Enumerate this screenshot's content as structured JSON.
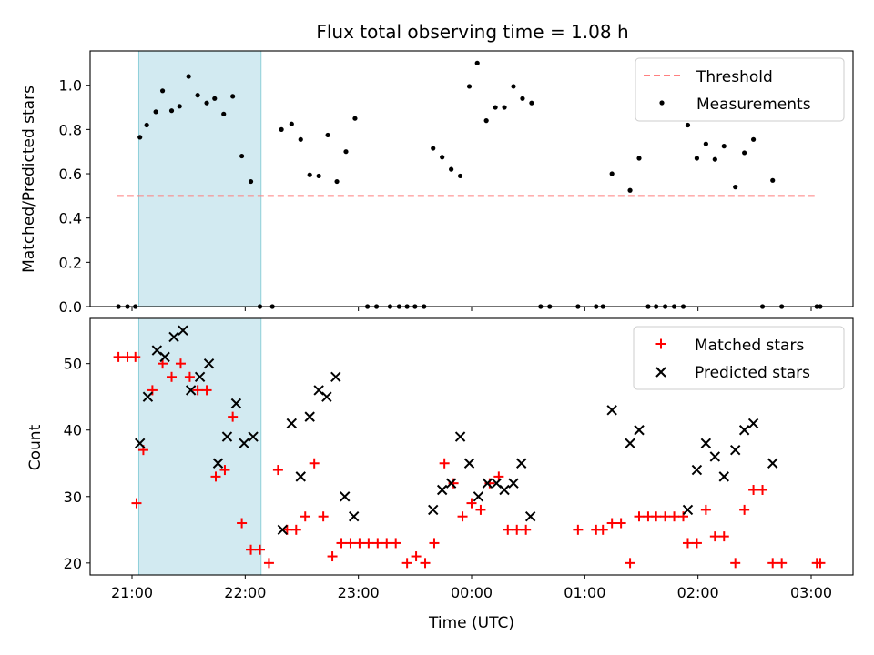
{
  "title": "Flux total observing time = 1.08 h",
  "chart_data": [
    {
      "type": "scatter",
      "ylabel": "Matched/Predicted stars",
      "xlabel": "",
      "x_unit": "hours since 21:00 UTC",
      "xlim": [
        -0.37,
        6.37
      ],
      "ylim": [
        0,
        1.155
      ],
      "yticks": [
        0.0,
        0.2,
        0.4,
        0.6,
        0.8,
        1.0
      ],
      "shaded_span": {
        "x": [
          0.06,
          1.14
        ],
        "color": "#add8e6"
      },
      "threshold": {
        "name": "Threshold",
        "y": 0.5,
        "x": [
          -0.13,
          6.03
        ],
        "color": "#ff7f7f",
        "style": "dashed"
      },
      "series": [
        {
          "name": "Measurements",
          "color": "#000000",
          "marker": "dot",
          "points": [
            [
              -0.12,
              0.0
            ],
            [
              -0.04,
              0.0
            ],
            [
              0.03,
              0.0
            ],
            [
              0.07,
              0.765
            ],
            [
              0.13,
              0.82
            ],
            [
              0.21,
              0.88
            ],
            [
              0.27,
              0.975
            ],
            [
              0.35,
              0.885
            ],
            [
              0.42,
              0.905
            ],
            [
              0.5,
              1.04
            ],
            [
              0.58,
              0.955
            ],
            [
              0.66,
              0.92
            ],
            [
              0.73,
              0.94
            ],
            [
              0.81,
              0.87
            ],
            [
              0.89,
              0.95
            ],
            [
              0.97,
              0.68
            ],
            [
              1.05,
              0.565
            ],
            [
              1.13,
              0.0
            ],
            [
              1.24,
              0.0
            ],
            [
              1.32,
              0.8
            ],
            [
              1.41,
              0.825
            ],
            [
              1.49,
              0.755
            ],
            [
              1.57,
              0.595
            ],
            [
              1.65,
              0.59
            ],
            [
              1.73,
              0.775
            ],
            [
              1.81,
              0.565
            ],
            [
              1.89,
              0.7
            ],
            [
              1.97,
              0.85
            ],
            [
              2.08,
              0.0
            ],
            [
              2.16,
              0.0
            ],
            [
              2.28,
              0.0
            ],
            [
              2.36,
              0.0
            ],
            [
              2.43,
              0.0
            ],
            [
              2.5,
              0.0
            ],
            [
              2.58,
              0.0
            ],
            [
              2.66,
              0.715
            ],
            [
              2.74,
              0.675
            ],
            [
              2.82,
              0.62
            ],
            [
              2.9,
              0.59
            ],
            [
              2.98,
              0.995
            ],
            [
              3.05,
              1.1
            ],
            [
              3.13,
              0.84
            ],
            [
              3.21,
              0.9
            ],
            [
              3.29,
              0.9
            ],
            [
              3.37,
              0.995
            ],
            [
              3.45,
              0.94
            ],
            [
              3.53,
              0.92
            ],
            [
              3.61,
              0.0
            ],
            [
              3.69,
              0.0
            ],
            [
              3.94,
              0.0
            ],
            [
              4.1,
              0.0
            ],
            [
              4.16,
              0.0
            ],
            [
              4.24,
              0.6
            ],
            [
              4.4,
              0.525
            ],
            [
              4.48,
              0.67
            ],
            [
              4.56,
              0.0
            ],
            [
              4.63,
              0.0
            ],
            [
              4.71,
              0.0
            ],
            [
              4.79,
              0.0
            ],
            [
              4.87,
              0.0
            ],
            [
              4.91,
              0.82
            ],
            [
              4.99,
              0.67
            ],
            [
              5.07,
              0.735
            ],
            [
              5.15,
              0.665
            ],
            [
              5.23,
              0.725
            ],
            [
              5.33,
              0.54
            ],
            [
              5.41,
              0.695
            ],
            [
              5.49,
              0.755
            ],
            [
              5.66,
              0.57
            ],
            [
              5.57,
              0.0
            ],
            [
              5.74,
              0.0
            ],
            [
              6.05,
              0.0
            ],
            [
              6.08,
              0.0
            ]
          ]
        }
      ],
      "legend": {
        "placement": "top-right",
        "entries": [
          "Threshold",
          "Measurements"
        ]
      },
      "grid": false
    },
    {
      "type": "scatter",
      "ylabel": "Count",
      "xlabel": "Time (UTC)",
      "x_unit": "hours since 21:00 UTC",
      "xlim": [
        -0.37,
        6.37
      ],
      "ylim": [
        18.2,
        56.8
      ],
      "yticks": [
        20,
        30,
        40,
        50
      ],
      "xticks": [
        {
          "value": 0,
          "label": "21:00"
        },
        {
          "value": 1,
          "label": "22:00"
        },
        {
          "value": 2,
          "label": "23:00"
        },
        {
          "value": 3,
          "label": "00:00"
        },
        {
          "value": 4,
          "label": "01:00"
        },
        {
          "value": 5,
          "label": "02:00"
        },
        {
          "value": 6,
          "label": "03:00"
        }
      ],
      "shaded_span": {
        "x": [
          0.06,
          1.14
        ],
        "color": "#add8e6"
      },
      "series": [
        {
          "name": "Matched stars",
          "color": "#ff0000",
          "marker": "plus",
          "points": [
            [
              -0.12,
              51
            ],
            [
              -0.04,
              51
            ],
            [
              0.03,
              51
            ],
            [
              0.04,
              29
            ],
            [
              0.1,
              37
            ],
            [
              0.18,
              46
            ],
            [
              0.27,
              50
            ],
            [
              0.35,
              48
            ],
            [
              0.43,
              50
            ],
            [
              0.51,
              48
            ],
            [
              0.58,
              46
            ],
            [
              0.66,
              46
            ],
            [
              0.74,
              33
            ],
            [
              0.82,
              34
            ],
            [
              0.89,
              42
            ],
            [
              0.97,
              26
            ],
            [
              1.05,
              22
            ],
            [
              1.13,
              22
            ],
            [
              1.21,
              20
            ],
            [
              1.29,
              34
            ],
            [
              1.37,
              25
            ],
            [
              1.45,
              25
            ],
            [
              1.53,
              27
            ],
            [
              1.61,
              35
            ],
            [
              1.69,
              27
            ],
            [
              1.77,
              21
            ],
            [
              1.85,
              23
            ],
            [
              1.93,
              23
            ],
            [
              2.01,
              23
            ],
            [
              2.09,
              23
            ],
            [
              2.17,
              23
            ],
            [
              2.25,
              23
            ],
            [
              2.33,
              23
            ],
            [
              2.43,
              20
            ],
            [
              2.51,
              21
            ],
            [
              2.59,
              20
            ],
            [
              2.67,
              23
            ],
            [
              2.76,
              35
            ],
            [
              2.84,
              32
            ],
            [
              2.92,
              27
            ],
            [
              3.0,
              29
            ],
            [
              3.08,
              28
            ],
            [
              3.16,
              32
            ],
            [
              3.24,
              33
            ],
            [
              3.32,
              25
            ],
            [
              3.4,
              25
            ],
            [
              3.48,
              25
            ],
            [
              3.94,
              25
            ],
            [
              4.1,
              25
            ],
            [
              4.16,
              25
            ],
            [
              4.24,
              26
            ],
            [
              4.32,
              26
            ],
            [
              4.4,
              20
            ],
            [
              4.48,
              27
            ],
            [
              4.56,
              27
            ],
            [
              4.63,
              27
            ],
            [
              4.71,
              27
            ],
            [
              4.79,
              27
            ],
            [
              4.87,
              27
            ],
            [
              4.91,
              23
            ],
            [
              4.99,
              23
            ],
            [
              5.07,
              28
            ],
            [
              5.15,
              24
            ],
            [
              5.23,
              24
            ],
            [
              5.33,
              20
            ],
            [
              5.41,
              28
            ],
            [
              5.49,
              31
            ],
            [
              5.57,
              31
            ],
            [
              5.66,
              20
            ],
            [
              5.74,
              20
            ],
            [
              6.05,
              20
            ],
            [
              6.08,
              20
            ]
          ]
        },
        {
          "name": "Predicted stars",
          "color": "#000000",
          "marker": "x",
          "points": [
            [
              0.07,
              38
            ],
            [
              0.14,
              45
            ],
            [
              0.22,
              52
            ],
            [
              0.29,
              51
            ],
            [
              0.37,
              54
            ],
            [
              0.45,
              55
            ],
            [
              0.52,
              46
            ],
            [
              0.6,
              48
            ],
            [
              0.68,
              50
            ],
            [
              0.76,
              35
            ],
            [
              0.84,
              39
            ],
            [
              0.92,
              44
            ],
            [
              0.99,
              38
            ],
            [
              1.07,
              39
            ],
            [
              1.33,
              25
            ],
            [
              1.41,
              41
            ],
            [
              1.49,
              33
            ],
            [
              1.57,
              42
            ],
            [
              1.65,
              46
            ],
            [
              1.72,
              45
            ],
            [
              1.8,
              48
            ],
            [
              1.88,
              30
            ],
            [
              1.96,
              27
            ],
            [
              2.66,
              28
            ],
            [
              2.74,
              31
            ],
            [
              2.82,
              32
            ],
            [
              2.9,
              39
            ],
            [
              2.98,
              35
            ],
            [
              3.06,
              30
            ],
            [
              3.14,
              32
            ],
            [
              3.22,
              32
            ],
            [
              3.29,
              31
            ],
            [
              3.37,
              32
            ],
            [
              3.44,
              35
            ],
            [
              3.52,
              27
            ],
            [
              4.24,
              43
            ],
            [
              4.4,
              38
            ],
            [
              4.48,
              40
            ],
            [
              4.91,
              28
            ],
            [
              4.99,
              34
            ],
            [
              5.07,
              38
            ],
            [
              5.15,
              36
            ],
            [
              5.23,
              33
            ],
            [
              5.33,
              37
            ],
            [
              5.41,
              40
            ],
            [
              5.49,
              41
            ],
            [
              5.66,
              35
            ]
          ]
        }
      ],
      "legend": {
        "placement": "top-right",
        "entries": [
          "Matched stars",
          "Predicted stars"
        ]
      },
      "grid": false
    }
  ]
}
